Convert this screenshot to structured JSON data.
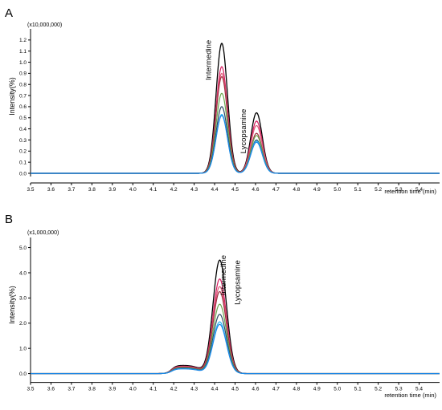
{
  "chart_data": [
    {
      "type": "line",
      "panel_label": "A",
      "multiplier_label": "(x10,000,000)",
      "ylabel": "Intensity(%)",
      "xlabel": "retention time (min)",
      "xlim": [
        3.5,
        5.5
      ],
      "ylim": [
        0,
        1.3
      ],
      "x_ticks": [
        "3.5",
        "3.6",
        "3.7",
        "3.8",
        "3.9",
        "4.0",
        "4.1",
        "4.2",
        "4.3",
        "4.4",
        "4.5",
        "4.6",
        "4.7",
        "4.8",
        "4.9",
        "5.0",
        "5.1",
        "5.2",
        "5.3",
        "5.4"
      ],
      "y_ticks": [
        "0.0",
        "0.1",
        "0.2",
        "0.3",
        "0.4",
        "0.5",
        "0.6",
        "0.7",
        "0.8",
        "0.9",
        "1.0",
        "1.1",
        "1.2"
      ],
      "annotations": [
        {
          "text": "Intermedine",
          "x": 4.43,
          "y": 1.2
        },
        {
          "text": "Lycopsamine",
          "x": 4.6,
          "y": 0.58
        }
      ],
      "series": [
        {
          "color": "#000000",
          "peaks": [
            {
              "x": 4.435,
              "height": 1.17
            },
            {
              "x": 4.605,
              "height": 0.545
            }
          ]
        },
        {
          "color": "#d81b60",
          "peaks": [
            {
              "x": 4.435,
              "height": 0.96
            },
            {
              "x": 4.605,
              "height": 0.47
            }
          ]
        },
        {
          "color": "#e05c7a",
          "peaks": [
            {
              "x": 4.435,
              "height": 0.9
            },
            {
              "x": 4.605,
              "height": 0.43
            }
          ]
        },
        {
          "color": "#a03040",
          "peaks": [
            {
              "x": 4.435,
              "height": 0.87
            },
            {
              "x": 4.605,
              "height": 0.36
            }
          ]
        },
        {
          "color": "#6aa84f",
          "peaks": [
            {
              "x": 4.435,
              "height": 0.72
            },
            {
              "x": 4.605,
              "height": 0.34
            }
          ]
        },
        {
          "color": "#2e4a62",
          "peaks": [
            {
              "x": 4.435,
              "height": 0.6
            },
            {
              "x": 4.605,
              "height": 0.3
            }
          ]
        },
        {
          "color": "#29b6f6",
          "peaks": [
            {
              "x": 4.435,
              "height": 0.53
            },
            {
              "x": 4.605,
              "height": 0.29
            }
          ]
        },
        {
          "color": "#1e88e5",
          "peaks": [
            {
              "x": 4.435,
              "height": 0.52
            },
            {
              "x": 4.605,
              "height": 0.28
            }
          ]
        }
      ]
    },
    {
      "type": "line",
      "panel_label": "B",
      "multiplier_label": "(x1,000,000)",
      "ylabel": "Intensity(%)",
      "xlabel": "retention time (min)",
      "xlim": [
        3.5,
        5.5
      ],
      "ylim": [
        -0.3,
        5.4
      ],
      "x_ticks": [
        "3.5",
        "3.6",
        "3.7",
        "3.8",
        "3.9",
        "4.0",
        "4.1",
        "4.2",
        "4.3",
        "4.4",
        "4.5",
        "4.6",
        "4.7",
        "4.8",
        "4.9",
        "5.0",
        "5.1",
        "5.2",
        "5.3",
        "5.4"
      ],
      "y_ticks": [
        "0.0",
        "1.0",
        "2.0",
        "3.0",
        "4.0",
        "5.0"
      ],
      "annotations": [
        {
          "text": "Intermedine",
          "x": 4.44,
          "y": 4.7
        },
        {
          "text": "Lycopsamine",
          "x": 4.46,
          "y": 4.5
        }
      ],
      "series": [
        {
          "color": "#000000",
          "peaks": [
            {
              "x": 4.425,
              "height": 4.5
            }
          ],
          "shoulder": 0.33
        },
        {
          "color": "#d81b60",
          "peaks": [
            {
              "x": 4.425,
              "height": 3.75
            }
          ],
          "shoulder": 0.3
        },
        {
          "color": "#e05c7a",
          "peaks": [
            {
              "x": 4.425,
              "height": 3.45
            }
          ],
          "shoulder": 0.28
        },
        {
          "color": "#a03040",
          "peaks": [
            {
              "x": 4.425,
              "height": 3.25
            }
          ],
          "shoulder": 0.26
        },
        {
          "color": "#6aa84f",
          "peaks": [
            {
              "x": 4.425,
              "height": 2.75
            }
          ],
          "shoulder": 0.24
        },
        {
          "color": "#2e4a62",
          "peaks": [
            {
              "x": 4.425,
              "height": 2.35
            }
          ],
          "shoulder": 0.22
        },
        {
          "color": "#29b6f6",
          "peaks": [
            {
              "x": 4.425,
              "height": 2.05
            }
          ],
          "shoulder": 0.2
        },
        {
          "color": "#1e88e5",
          "peaks": [
            {
              "x": 4.425,
              "height": 1.95
            }
          ],
          "shoulder": 0.19
        }
      ]
    }
  ]
}
